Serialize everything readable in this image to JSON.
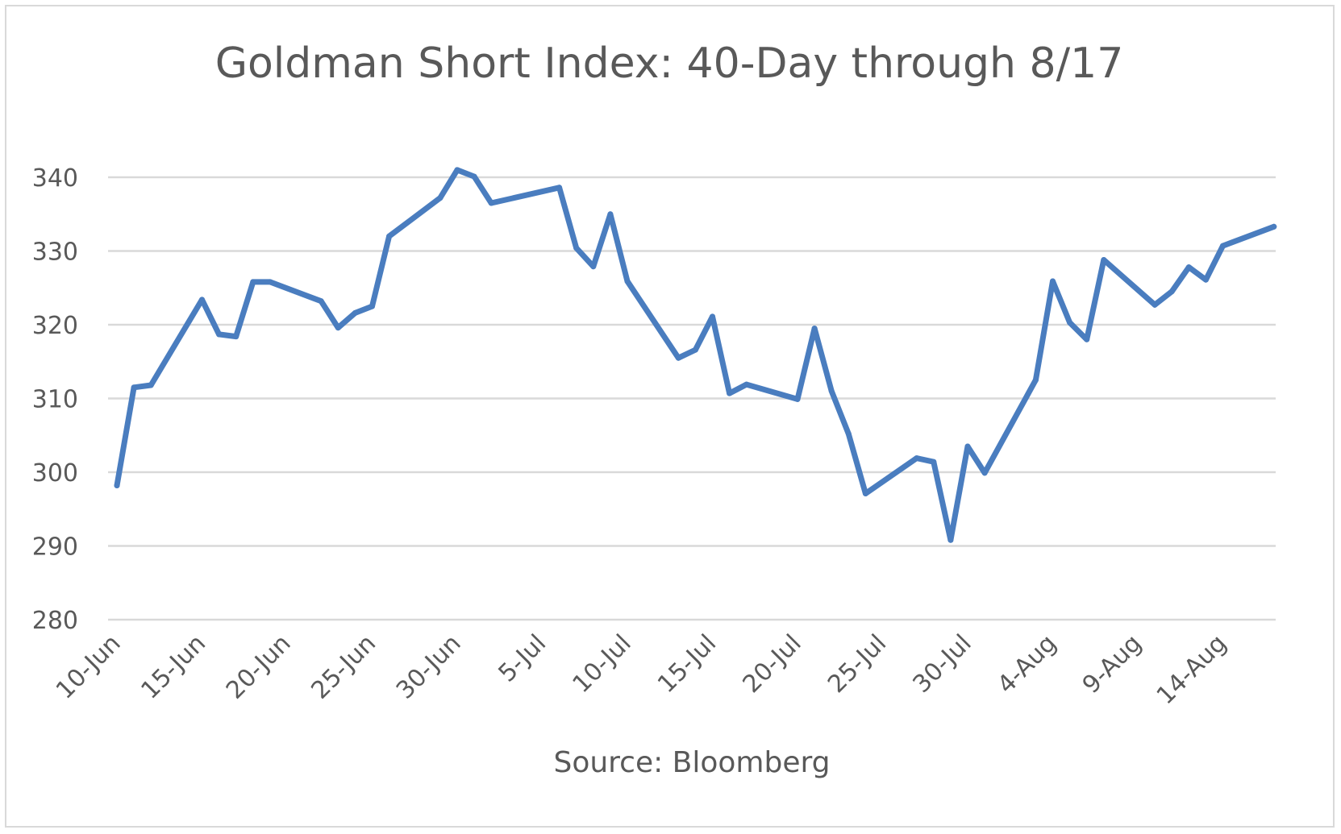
{
  "colors": {
    "series": "#4a7dbf",
    "grid": "#d9d9d9",
    "text": "#595959",
    "border": "#d9d9d9"
  },
  "chart_data": {
    "type": "line",
    "title": "Goldman Short Index: 40-Day through 8/17",
    "xlabel": "Source: Bloomberg",
    "ylabel": "",
    "ylim": [
      280,
      340
    ],
    "yticks": [
      280,
      290,
      300,
      310,
      320,
      330,
      340
    ],
    "xtick_labels": [
      "10-Jun",
      "15-Jun",
      "20-Jun",
      "25-Jun",
      "30-Jun",
      "5-Jul",
      "10-Jul",
      "15-Jul",
      "20-Jul",
      "25-Jul",
      "30-Jul",
      "4-Aug",
      "9-Aug",
      "14-Aug"
    ],
    "grid": true,
    "legend": "none",
    "series": [
      {
        "x": [
          "2020-06-10",
          "2020-06-11",
          "2020-06-12",
          "2020-06-15",
          "2020-06-16",
          "2020-06-17",
          "2020-06-18",
          "2020-06-19",
          "2020-06-22",
          "2020-06-23",
          "2020-06-24",
          "2020-06-25",
          "2020-06-26",
          "2020-06-29",
          "2020-06-30",
          "2020-07-01",
          "2020-07-02",
          "2020-07-06",
          "2020-07-07",
          "2020-07-08",
          "2020-07-09",
          "2020-07-10",
          "2020-07-13",
          "2020-07-14",
          "2020-07-15",
          "2020-07-16",
          "2020-07-17",
          "2020-07-20",
          "2020-07-21",
          "2020-07-22",
          "2020-07-23",
          "2020-07-24",
          "2020-07-27",
          "2020-07-28",
          "2020-07-29",
          "2020-07-30",
          "2020-07-31",
          "2020-08-03",
          "2020-08-04",
          "2020-08-05",
          "2020-08-06",
          "2020-08-07",
          "2020-08-10",
          "2020-08-11",
          "2020-08-12",
          "2020-08-13",
          "2020-08-14",
          "2020-08-17"
        ],
        "values": [
          298.2,
          311.5,
          311.8,
          323.4,
          318.7,
          318.4,
          325.8,
          325.8,
          323.2,
          319.6,
          321.6,
          322.5,
          332.0,
          337.2,
          341.0,
          340.1,
          336.5,
          338.6,
          330.4,
          327.9,
          335.0,
          325.9,
          315.5,
          316.6,
          321.1,
          310.7,
          311.9,
          309.9,
          319.5,
          311.0,
          305.2,
          297.1,
          301.9,
          301.4,
          290.8,
          303.5,
          299.9,
          312.5,
          325.9,
          320.3,
          318.0,
          328.8,
          322.7,
          324.5,
          327.8,
          326.1,
          330.7,
          333.3
        ]
      }
    ]
  }
}
